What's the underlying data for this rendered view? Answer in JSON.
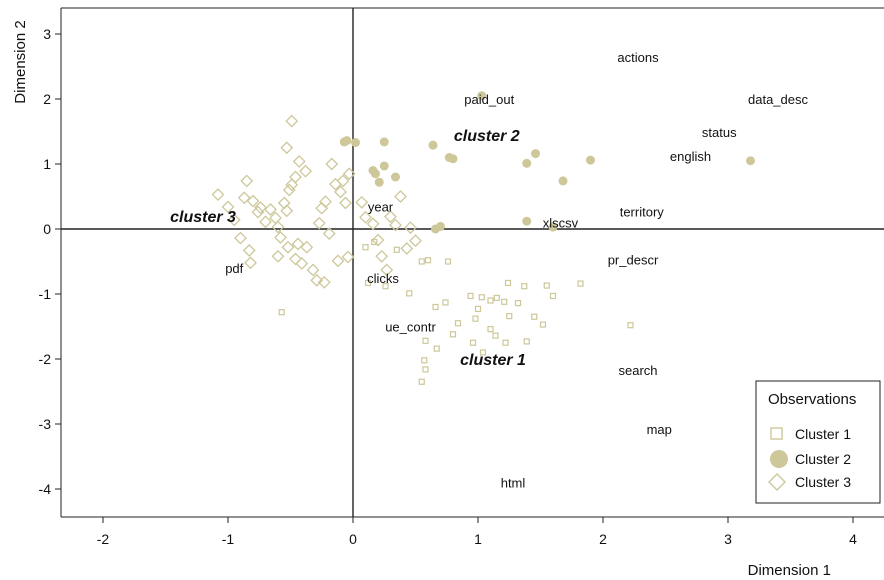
{
  "chart_data": {
    "type": "scatter",
    "xlabel": "Dimension 1",
    "ylabel": "Dimension 2",
    "xlim": [
      -2.35,
      4.25
    ],
    "ylim": [
      -4.45,
      3.4
    ],
    "xticks": [
      -2,
      -1,
      0,
      1,
      2,
      3,
      4
    ],
    "yticks": [
      3,
      2,
      1,
      0,
      -1,
      -2,
      -3,
      -4
    ],
    "grid": false,
    "colors": {
      "marker": "#cdc79a",
      "axis": "#222222"
    },
    "legend": {
      "title": "Observations",
      "placement": "bottom-right",
      "entries": [
        {
          "label": "Cluster 1",
          "marker": "square-open"
        },
        {
          "label": "Cluster 2",
          "marker": "circle-filled"
        },
        {
          "label": "Cluster 3",
          "marker": "diamond-open"
        }
      ]
    },
    "cluster_labels": [
      {
        "text": "cluster 3",
        "x": -1.2,
        "y": 0.2
      },
      {
        "text": "cluster 2",
        "x": 1.07,
        "y": 1.45
      },
      {
        "text": "cluster 1",
        "x": 1.12,
        "y": -2.0
      }
    ],
    "variable_labels": [
      {
        "text": "actions",
        "x": 2.28,
        "y": 2.65
      },
      {
        "text": "paid_out",
        "x": 1.09,
        "y": 2.0
      },
      {
        "text": "data_desc",
        "x": 3.4,
        "y": 2.0
      },
      {
        "text": "status",
        "x": 2.93,
        "y": 1.49
      },
      {
        "text": "english",
        "x": 2.7,
        "y": 1.12
      },
      {
        "text": "territory",
        "x": 2.31,
        "y": 0.27
      },
      {
        "text": "year",
        "x": 0.22,
        "y": 0.35
      },
      {
        "text": "xlscsv",
        "x": 1.66,
        "y": 0.1
      },
      {
        "text": "pdf",
        "x": -0.95,
        "y": -0.6
      },
      {
        "text": "pr_descr",
        "x": 2.24,
        "y": -0.47
      },
      {
        "text": "clicks",
        "x": 0.24,
        "y": -0.75
      },
      {
        "text": "ue_contr",
        "x": 0.46,
        "y": -1.5
      },
      {
        "text": "search",
        "x": 2.28,
        "y": -2.17
      },
      {
        "text": "map",
        "x": 2.45,
        "y": -3.08
      },
      {
        "text": "html",
        "x": 1.28,
        "y": -3.9
      }
    ],
    "series": [
      {
        "name": "Cluster 1",
        "marker": "square-open",
        "points": [
          [
            -0.57,
            -1.28
          ],
          [
            0.1,
            -0.28
          ],
          [
            0.17,
            -0.2
          ],
          [
            0.35,
            -0.32
          ],
          [
            0.55,
            -0.5
          ],
          [
            0.6,
            -0.48
          ],
          [
            0.76,
            -0.5
          ],
          [
            0.12,
            -0.83
          ],
          [
            0.26,
            -0.88
          ],
          [
            0.45,
            -0.99
          ],
          [
            0.66,
            -1.2
          ],
          [
            0.74,
            -1.13
          ],
          [
            0.94,
            -1.03
          ],
          [
            1.03,
            -1.05
          ],
          [
            1.15,
            -1.06
          ],
          [
            1.0,
            -1.23
          ],
          [
            1.1,
            -1.1
          ],
          [
            1.21,
            -1.12
          ],
          [
            1.32,
            -1.14
          ],
          [
            1.24,
            -0.83
          ],
          [
            1.37,
            -0.88
          ],
          [
            1.6,
            -1.03
          ],
          [
            1.82,
            -0.84
          ],
          [
            2.22,
            -1.48
          ],
          [
            1.55,
            -0.87
          ],
          [
            0.84,
            -1.45
          ],
          [
            0.98,
            -1.38
          ],
          [
            1.1,
            -1.54
          ],
          [
            1.25,
            -1.34
          ],
          [
            1.45,
            -1.35
          ],
          [
            0.96,
            -1.75
          ],
          [
            1.04,
            -1.9
          ],
          [
            1.22,
            -1.75
          ],
          [
            1.39,
            -1.73
          ],
          [
            1.52,
            -1.47
          ],
          [
            1.14,
            -1.64
          ],
          [
            0.57,
            -2.02
          ],
          [
            0.58,
            -2.16
          ],
          [
            0.55,
            -2.35
          ],
          [
            0.67,
            -1.84
          ],
          [
            0.8,
            -1.62
          ],
          [
            0.58,
            -1.72
          ]
        ]
      },
      {
        "name": "Cluster 2",
        "marker": "circle-filled",
        "points": [
          [
            -0.07,
            1.34
          ],
          [
            -0.05,
            1.36
          ],
          [
            0.02,
            1.33
          ],
          [
            0.25,
            1.34
          ],
          [
            0.64,
            1.29
          ],
          [
            0.77,
            1.1
          ],
          [
            0.8,
            1.08
          ],
          [
            1.03,
            2.05
          ],
          [
            1.39,
            1.01
          ],
          [
            1.46,
            1.16
          ],
          [
            1.68,
            0.74
          ],
          [
            1.9,
            1.06
          ],
          [
            3.18,
            1.05
          ],
          [
            0.16,
            0.9
          ],
          [
            0.21,
            0.72
          ],
          [
            0.34,
            0.8
          ],
          [
            0.66,
            0.0
          ],
          [
            0.7,
            0.04
          ],
          [
            1.39,
            0.12
          ],
          [
            1.6,
            0.03
          ],
          [
            0.25,
            0.97
          ],
          [
            0.18,
            0.85
          ]
        ]
      },
      {
        "name": "Cluster 3",
        "marker": "diamond-open",
        "points": [
          [
            -1.08,
            0.53
          ],
          [
            -1.0,
            0.34
          ],
          [
            -0.95,
            0.14
          ],
          [
            -0.9,
            -0.14
          ],
          [
            -0.85,
            0.74
          ],
          [
            -0.87,
            0.48
          ],
          [
            -0.83,
            -0.33
          ],
          [
            -0.8,
            0.43
          ],
          [
            -0.76,
            0.26
          ],
          [
            -0.74,
            0.33
          ],
          [
            -0.82,
            -0.52
          ],
          [
            -0.7,
            0.11
          ],
          [
            -0.66,
            0.3
          ],
          [
            -0.62,
            0.17
          ],
          [
            -0.6,
            0.03
          ],
          [
            -0.58,
            -0.13
          ],
          [
            -0.53,
            0.28
          ],
          [
            -0.51,
            0.6
          ],
          [
            -0.49,
            0.68
          ],
          [
            -0.46,
            0.8
          ],
          [
            -0.43,
            1.04
          ],
          [
            -0.38,
            0.89
          ],
          [
            -0.53,
            1.25
          ],
          [
            -0.49,
            1.66
          ],
          [
            -0.52,
            -0.28
          ],
          [
            -0.46,
            -0.46
          ],
          [
            -0.44,
            -0.23
          ],
          [
            -0.41,
            -0.53
          ],
          [
            -0.37,
            -0.28
          ],
          [
            -0.32,
            -0.63
          ],
          [
            -0.29,
            -0.79
          ],
          [
            -0.27,
            0.09
          ],
          [
            -0.25,
            0.32
          ],
          [
            -0.23,
            -0.82
          ],
          [
            -0.22,
            0.42
          ],
          [
            -0.19,
            -0.07
          ],
          [
            -0.17,
            1.0
          ],
          [
            -0.14,
            0.69
          ],
          [
            -0.12,
            -0.49
          ],
          [
            -0.1,
            0.57
          ],
          [
            -0.08,
            0.74
          ],
          [
            -0.06,
            0.4
          ],
          [
            -0.04,
            -0.43
          ],
          [
            -0.03,
            0.85
          ],
          [
            0.07,
            0.41
          ],
          [
            0.1,
            0.18
          ],
          [
            0.16,
            0.08
          ],
          [
            0.2,
            -0.17
          ],
          [
            0.23,
            -0.42
          ],
          [
            0.27,
            -0.63
          ],
          [
            0.3,
            0.19
          ],
          [
            0.34,
            0.06
          ],
          [
            0.38,
            0.5
          ],
          [
            0.43,
            -0.3
          ],
          [
            0.46,
            0.02
          ],
          [
            0.5,
            -0.18
          ],
          [
            -0.6,
            -0.42
          ],
          [
            -0.55,
            0.4
          ]
        ]
      }
    ]
  }
}
